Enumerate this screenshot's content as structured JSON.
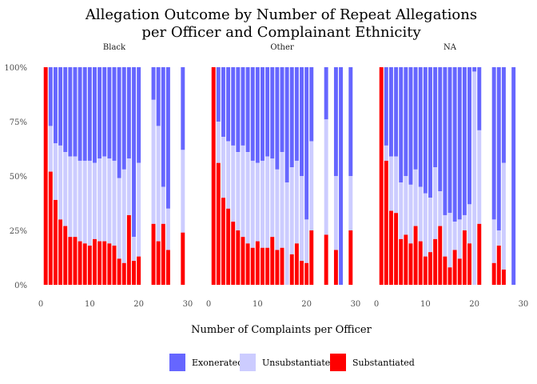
{
  "chart_data": {
    "type": "bar",
    "stacked": true,
    "normalized": true,
    "title": "Allegation Outcome by Number of Repeat Allegations\nper Officer and Complainant Ethnicity",
    "xlabel": "Number of Complaints per Officer",
    "ylabel": "",
    "xlim": [
      0,
      30
    ],
    "ylim": [
      0,
      1
    ],
    "x_ticks": [
      0,
      10,
      20,
      30
    ],
    "y_ticks": [
      {
        "value": 0,
        "label": "0%"
      },
      {
        "value": 0.25,
        "label": "25%"
      },
      {
        "value": 0.5,
        "label": "50%"
      },
      {
        "value": 0.75,
        "label": "75%"
      },
      {
        "value": 1,
        "label": "100%"
      }
    ],
    "grid": false,
    "legend_position": "bottom",
    "series": [
      {
        "name": "Exonerated",
        "color": "#6666ff"
      },
      {
        "name": "Unsubstantiated",
        "color": "#ccccff"
      },
      {
        "name": "Substantiated",
        "color": "#ff0000"
      }
    ],
    "facets": [
      {
        "label": "Black",
        "bars": [
          {
            "x": 1,
            "substantiated": 1.0,
            "unsubstantiated": 0.0
          },
          {
            "x": 2,
            "substantiated": 0.52,
            "unsubstantiated": 0.21
          },
          {
            "x": 3,
            "substantiated": 0.39,
            "unsubstantiated": 0.26
          },
          {
            "x": 4,
            "substantiated": 0.3,
            "unsubstantiated": 0.34
          },
          {
            "x": 5,
            "substantiated": 0.27,
            "unsubstantiated": 0.34
          },
          {
            "x": 6,
            "substantiated": 0.22,
            "unsubstantiated": 0.37
          },
          {
            "x": 7,
            "substantiated": 0.22,
            "unsubstantiated": 0.37
          },
          {
            "x": 8,
            "substantiated": 0.2,
            "unsubstantiated": 0.37
          },
          {
            "x": 9,
            "substantiated": 0.19,
            "unsubstantiated": 0.38
          },
          {
            "x": 10,
            "substantiated": 0.18,
            "unsubstantiated": 0.39
          },
          {
            "x": 11,
            "substantiated": 0.21,
            "unsubstantiated": 0.35
          },
          {
            "x": 12,
            "substantiated": 0.2,
            "unsubstantiated": 0.38
          },
          {
            "x": 13,
            "substantiated": 0.2,
            "unsubstantiated": 0.39
          },
          {
            "x": 14,
            "substantiated": 0.19,
            "unsubstantiated": 0.39
          },
          {
            "x": 15,
            "substantiated": 0.18,
            "unsubstantiated": 0.39
          },
          {
            "x": 16,
            "substantiated": 0.12,
            "unsubstantiated": 0.37
          },
          {
            "x": 17,
            "substantiated": 0.1,
            "unsubstantiated": 0.43
          },
          {
            "x": 18,
            "substantiated": 0.32,
            "unsubstantiated": 0.26
          },
          {
            "x": 19,
            "substantiated": 0.11,
            "unsubstantiated": 0.11
          },
          {
            "x": 20,
            "substantiated": 0.13,
            "unsubstantiated": 0.43
          },
          {
            "x": 23,
            "substantiated": 0.28,
            "unsubstantiated": 0.57
          },
          {
            "x": 24,
            "substantiated": 0.2,
            "unsubstantiated": 0.53
          },
          {
            "x": 25,
            "substantiated": 0.28,
            "unsubstantiated": 0.17
          },
          {
            "x": 26,
            "substantiated": 0.16,
            "unsubstantiated": 0.19
          },
          {
            "x": 29,
            "substantiated": 0.24,
            "unsubstantiated": 0.38
          }
        ]
      },
      {
        "label": "Other",
        "bars": [
          {
            "x": 1,
            "substantiated": 1.0,
            "unsubstantiated": 0.0
          },
          {
            "x": 2,
            "substantiated": 0.56,
            "unsubstantiated": 0.19
          },
          {
            "x": 3,
            "substantiated": 0.4,
            "unsubstantiated": 0.28
          },
          {
            "x": 4,
            "substantiated": 0.35,
            "unsubstantiated": 0.31
          },
          {
            "x": 5,
            "substantiated": 0.29,
            "unsubstantiated": 0.35
          },
          {
            "x": 6,
            "substantiated": 0.25,
            "unsubstantiated": 0.36
          },
          {
            "x": 7,
            "substantiated": 0.22,
            "unsubstantiated": 0.42
          },
          {
            "x": 8,
            "substantiated": 0.19,
            "unsubstantiated": 0.42
          },
          {
            "x": 9,
            "substantiated": 0.17,
            "unsubstantiated": 0.4
          },
          {
            "x": 10,
            "substantiated": 0.2,
            "unsubstantiated": 0.36
          },
          {
            "x": 11,
            "substantiated": 0.17,
            "unsubstantiated": 0.4
          },
          {
            "x": 12,
            "substantiated": 0.17,
            "unsubstantiated": 0.42
          },
          {
            "x": 13,
            "substantiated": 0.22,
            "unsubstantiated": 0.36
          },
          {
            "x": 14,
            "substantiated": 0.16,
            "unsubstantiated": 0.37
          },
          {
            "x": 15,
            "substantiated": 0.17,
            "unsubstantiated": 0.44
          },
          {
            "x": 16,
            "substantiated": 0.0,
            "unsubstantiated": 0.47
          },
          {
            "x": 17,
            "substantiated": 0.14,
            "unsubstantiated": 0.4
          },
          {
            "x": 18,
            "substantiated": 0.19,
            "unsubstantiated": 0.38
          },
          {
            "x": 19,
            "substantiated": 0.11,
            "unsubstantiated": 0.39
          },
          {
            "x": 20,
            "substantiated": 0.1,
            "unsubstantiated": 0.2
          },
          {
            "x": 21,
            "substantiated": 0.25,
            "unsubstantiated": 0.41
          },
          {
            "x": 24,
            "substantiated": 0.23,
            "unsubstantiated": 0.53
          },
          {
            "x": 26,
            "substantiated": 0.16,
            "unsubstantiated": 0.34
          },
          {
            "x": 27,
            "substantiated": 0.0,
            "unsubstantiated": 0.0
          },
          {
            "x": 29,
            "substantiated": 0.25,
            "unsubstantiated": 0.25
          }
        ]
      },
      {
        "label": "NA",
        "bars": [
          {
            "x": 1,
            "substantiated": 1.0,
            "unsubstantiated": 0.0
          },
          {
            "x": 2,
            "substantiated": 0.57,
            "unsubstantiated": 0.07
          },
          {
            "x": 3,
            "substantiated": 0.34,
            "unsubstantiated": 0.25
          },
          {
            "x": 4,
            "substantiated": 0.33,
            "unsubstantiated": 0.26
          },
          {
            "x": 5,
            "substantiated": 0.21,
            "unsubstantiated": 0.26
          },
          {
            "x": 6,
            "substantiated": 0.23,
            "unsubstantiated": 0.27
          },
          {
            "x": 7,
            "substantiated": 0.19,
            "unsubstantiated": 0.27
          },
          {
            "x": 8,
            "substantiated": 0.27,
            "unsubstantiated": 0.26
          },
          {
            "x": 9,
            "substantiated": 0.2,
            "unsubstantiated": 0.25
          },
          {
            "x": 10,
            "substantiated": 0.13,
            "unsubstantiated": 0.29
          },
          {
            "x": 11,
            "substantiated": 0.15,
            "unsubstantiated": 0.25
          },
          {
            "x": 12,
            "substantiated": 0.21,
            "unsubstantiated": 0.33
          },
          {
            "x": 13,
            "substantiated": 0.27,
            "unsubstantiated": 0.16
          },
          {
            "x": 14,
            "substantiated": 0.13,
            "unsubstantiated": 0.19
          },
          {
            "x": 15,
            "substantiated": 0.08,
            "unsubstantiated": 0.25
          },
          {
            "x": 16,
            "substantiated": 0.16,
            "unsubstantiated": 0.13
          },
          {
            "x": 17,
            "substantiated": 0.12,
            "unsubstantiated": 0.18
          },
          {
            "x": 18,
            "substantiated": 0.25,
            "unsubstantiated": 0.07
          },
          {
            "x": 19,
            "substantiated": 0.19,
            "unsubstantiated": 0.18
          },
          {
            "x": 20,
            "substantiated": 0.0,
            "unsubstantiated": 0.98
          },
          {
            "x": 21,
            "substantiated": 0.28,
            "unsubstantiated": 0.43
          },
          {
            "x": 24,
            "substantiated": 0.1,
            "unsubstantiated": 0.2
          },
          {
            "x": 25,
            "substantiated": 0.18,
            "unsubstantiated": 0.07
          },
          {
            "x": 26,
            "substantiated": 0.07,
            "unsubstantiated": 0.49
          },
          {
            "x": 28,
            "substantiated": 0.0,
            "unsubstantiated": 0.0
          }
        ]
      }
    ]
  }
}
